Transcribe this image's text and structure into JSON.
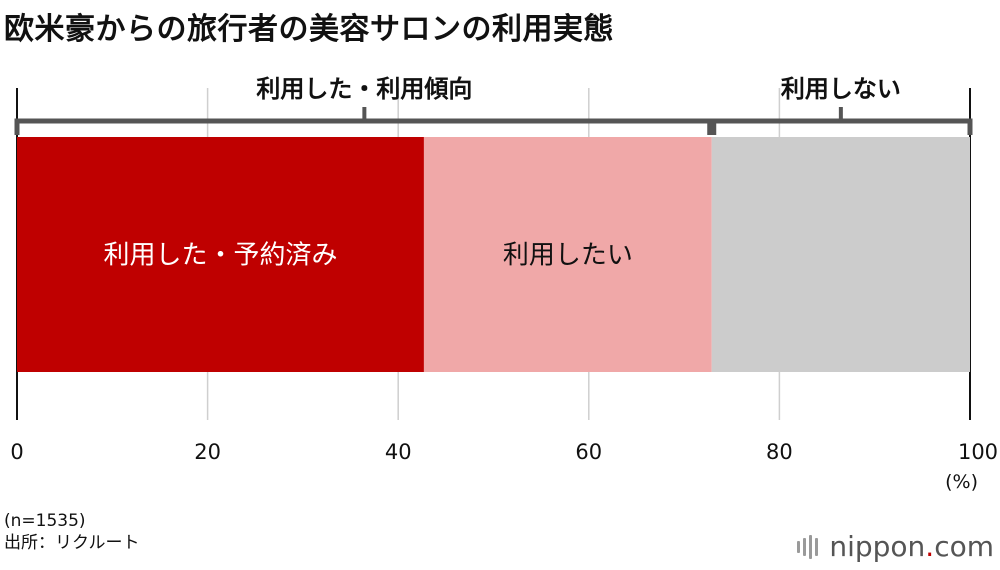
{
  "title": "欧米豪からの旅行者の美容サロンの利用実態",
  "chart_data": {
    "type": "bar",
    "orientation": "horizontal-stacked",
    "categories": [
      ""
    ],
    "series": [
      {
        "name": "利用した・予約済み",
        "values": [
          42.7
        ],
        "color": "#bf0000"
      },
      {
        "name": "利用したい",
        "values": [
          30.2
        ],
        "color": "#f0a8a8"
      },
      {
        "name": "",
        "values": [
          27.1
        ],
        "color": "#cccccc"
      }
    ],
    "groups": [
      {
        "label": "利用した・利用傾向",
        "from": 0,
        "to": 72.9
      },
      {
        "label": "利用しない",
        "from": 72.9,
        "to": 100
      }
    ],
    "xlim": [
      0,
      100
    ],
    "xticks": [
      "0",
      "20",
      "40",
      "60",
      "80",
      "100"
    ],
    "xticks_values": [
      0,
      20,
      40,
      60,
      80,
      100
    ],
    "unit": "(%)",
    "grid": true
  },
  "notes": {
    "sample": "(n=1535)",
    "source": "出所：リクルート"
  },
  "brand": {
    "name": "nippon",
    "dot": ".",
    "suffix": "com"
  }
}
